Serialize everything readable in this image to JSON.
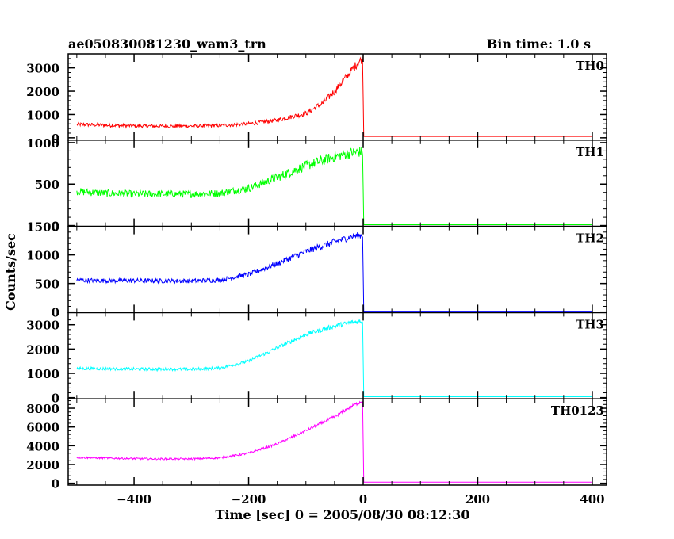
{
  "header": {
    "title": "ae050830081230_wam3_trn",
    "bin_time": "Bin time: 1.0 s"
  },
  "chart_data": {
    "type": "line",
    "xlabel": "Time [sec] 0 = 2005/08/30 08:12:30",
    "ylabel": "Counts/sec",
    "xlim": [
      -515,
      425
    ],
    "x_ticks": [
      -400,
      -200,
      0,
      200,
      400
    ],
    "panels": [
      {
        "name": "TH0",
        "color": "#ff0000",
        "ylim": [
          -100,
          3600
        ],
        "y_ticks": [
          0,
          1000,
          2000,
          3000
        ],
        "noise": 80,
        "values": [
          {
            "x": -500,
            "y": 580
          },
          {
            "x": -450,
            "y": 540
          },
          {
            "x": -400,
            "y": 510
          },
          {
            "x": -350,
            "y": 500
          },
          {
            "x": -300,
            "y": 505
          },
          {
            "x": -250,
            "y": 530
          },
          {
            "x": -200,
            "y": 600
          },
          {
            "x": -150,
            "y": 760
          },
          {
            "x": -100,
            "y": 1050
          },
          {
            "x": -70,
            "y": 1500
          },
          {
            "x": -50,
            "y": 2000
          },
          {
            "x": -30,
            "y": 2600
          },
          {
            "x": -10,
            "y": 3200
          },
          {
            "x": -1,
            "y": 3400
          },
          {
            "x": 1,
            "y": 60
          },
          {
            "x": 400,
            "y": 60
          }
        ]
      },
      {
        "name": "TH1",
        "color": "#00ff00",
        "ylim": [
          -10,
          1030
        ],
        "y_ticks": [
          0,
          500,
          1000
        ],
        "noise": 45,
        "values": [
          {
            "x": -500,
            "y": 410
          },
          {
            "x": -450,
            "y": 390
          },
          {
            "x": -400,
            "y": 380
          },
          {
            "x": -350,
            "y": 380
          },
          {
            "x": -300,
            "y": 380
          },
          {
            "x": -250,
            "y": 390
          },
          {
            "x": -200,
            "y": 450
          },
          {
            "x": -150,
            "y": 580
          },
          {
            "x": -100,
            "y": 720
          },
          {
            "x": -50,
            "y": 830
          },
          {
            "x": -20,
            "y": 880
          },
          {
            "x": -1,
            "y": 890
          },
          {
            "x": 1,
            "y": 10
          },
          {
            "x": 400,
            "y": 10
          }
        ]
      },
      {
        "name": "TH2",
        "color": "#0000ff",
        "ylim": [
          -10,
          1500
        ],
        "y_ticks": [
          0,
          500,
          1000,
          1500
        ],
        "noise": 40,
        "values": [
          {
            "x": -500,
            "y": 560
          },
          {
            "x": -450,
            "y": 550
          },
          {
            "x": -400,
            "y": 550
          },
          {
            "x": -350,
            "y": 545
          },
          {
            "x": -300,
            "y": 545
          },
          {
            "x": -250,
            "y": 560
          },
          {
            "x": -200,
            "y": 660
          },
          {
            "x": -150,
            "y": 850
          },
          {
            "x": -100,
            "y": 1060
          },
          {
            "x": -50,
            "y": 1230
          },
          {
            "x": -20,
            "y": 1320
          },
          {
            "x": -1,
            "y": 1350
          },
          {
            "x": 1,
            "y": 15
          },
          {
            "x": 400,
            "y": 15
          }
        ]
      },
      {
        "name": "TH3",
        "color": "#00ffff",
        "ylim": [
          -50,
          3500
        ],
        "y_ticks": [
          0,
          1000,
          2000,
          3000
        ],
        "noise": 60,
        "values": [
          {
            "x": -500,
            "y": 1200
          },
          {
            "x": -450,
            "y": 1190
          },
          {
            "x": -400,
            "y": 1180
          },
          {
            "x": -350,
            "y": 1170
          },
          {
            "x": -300,
            "y": 1170
          },
          {
            "x": -250,
            "y": 1220
          },
          {
            "x": -200,
            "y": 1500
          },
          {
            "x": -150,
            "y": 2050
          },
          {
            "x": -100,
            "y": 2600
          },
          {
            "x": -50,
            "y": 2950
          },
          {
            "x": -20,
            "y": 3100
          },
          {
            "x": -1,
            "y": 3150
          },
          {
            "x": 1,
            "y": 40
          },
          {
            "x": 400,
            "y": 40
          }
        ]
      },
      {
        "name": "TH0123",
        "color": "#ff00ff",
        "ylim": [
          -200,
          9000
        ],
        "y_ticks": [
          0,
          2000,
          4000,
          6000,
          8000
        ],
        "noise": 100,
        "values": [
          {
            "x": -500,
            "y": 2750
          },
          {
            "x": -450,
            "y": 2680
          },
          {
            "x": -400,
            "y": 2620
          },
          {
            "x": -350,
            "y": 2600
          },
          {
            "x": -300,
            "y": 2600
          },
          {
            "x": -250,
            "y": 2700
          },
          {
            "x": -200,
            "y": 3200
          },
          {
            "x": -150,
            "y": 4200
          },
          {
            "x": -100,
            "y": 5600
          },
          {
            "x": -50,
            "y": 7100
          },
          {
            "x": -20,
            "y": 8200
          },
          {
            "x": -1,
            "y": 8800
          },
          {
            "x": 1,
            "y": 120
          },
          {
            "x": 400,
            "y": 120
          }
        ]
      }
    ]
  }
}
